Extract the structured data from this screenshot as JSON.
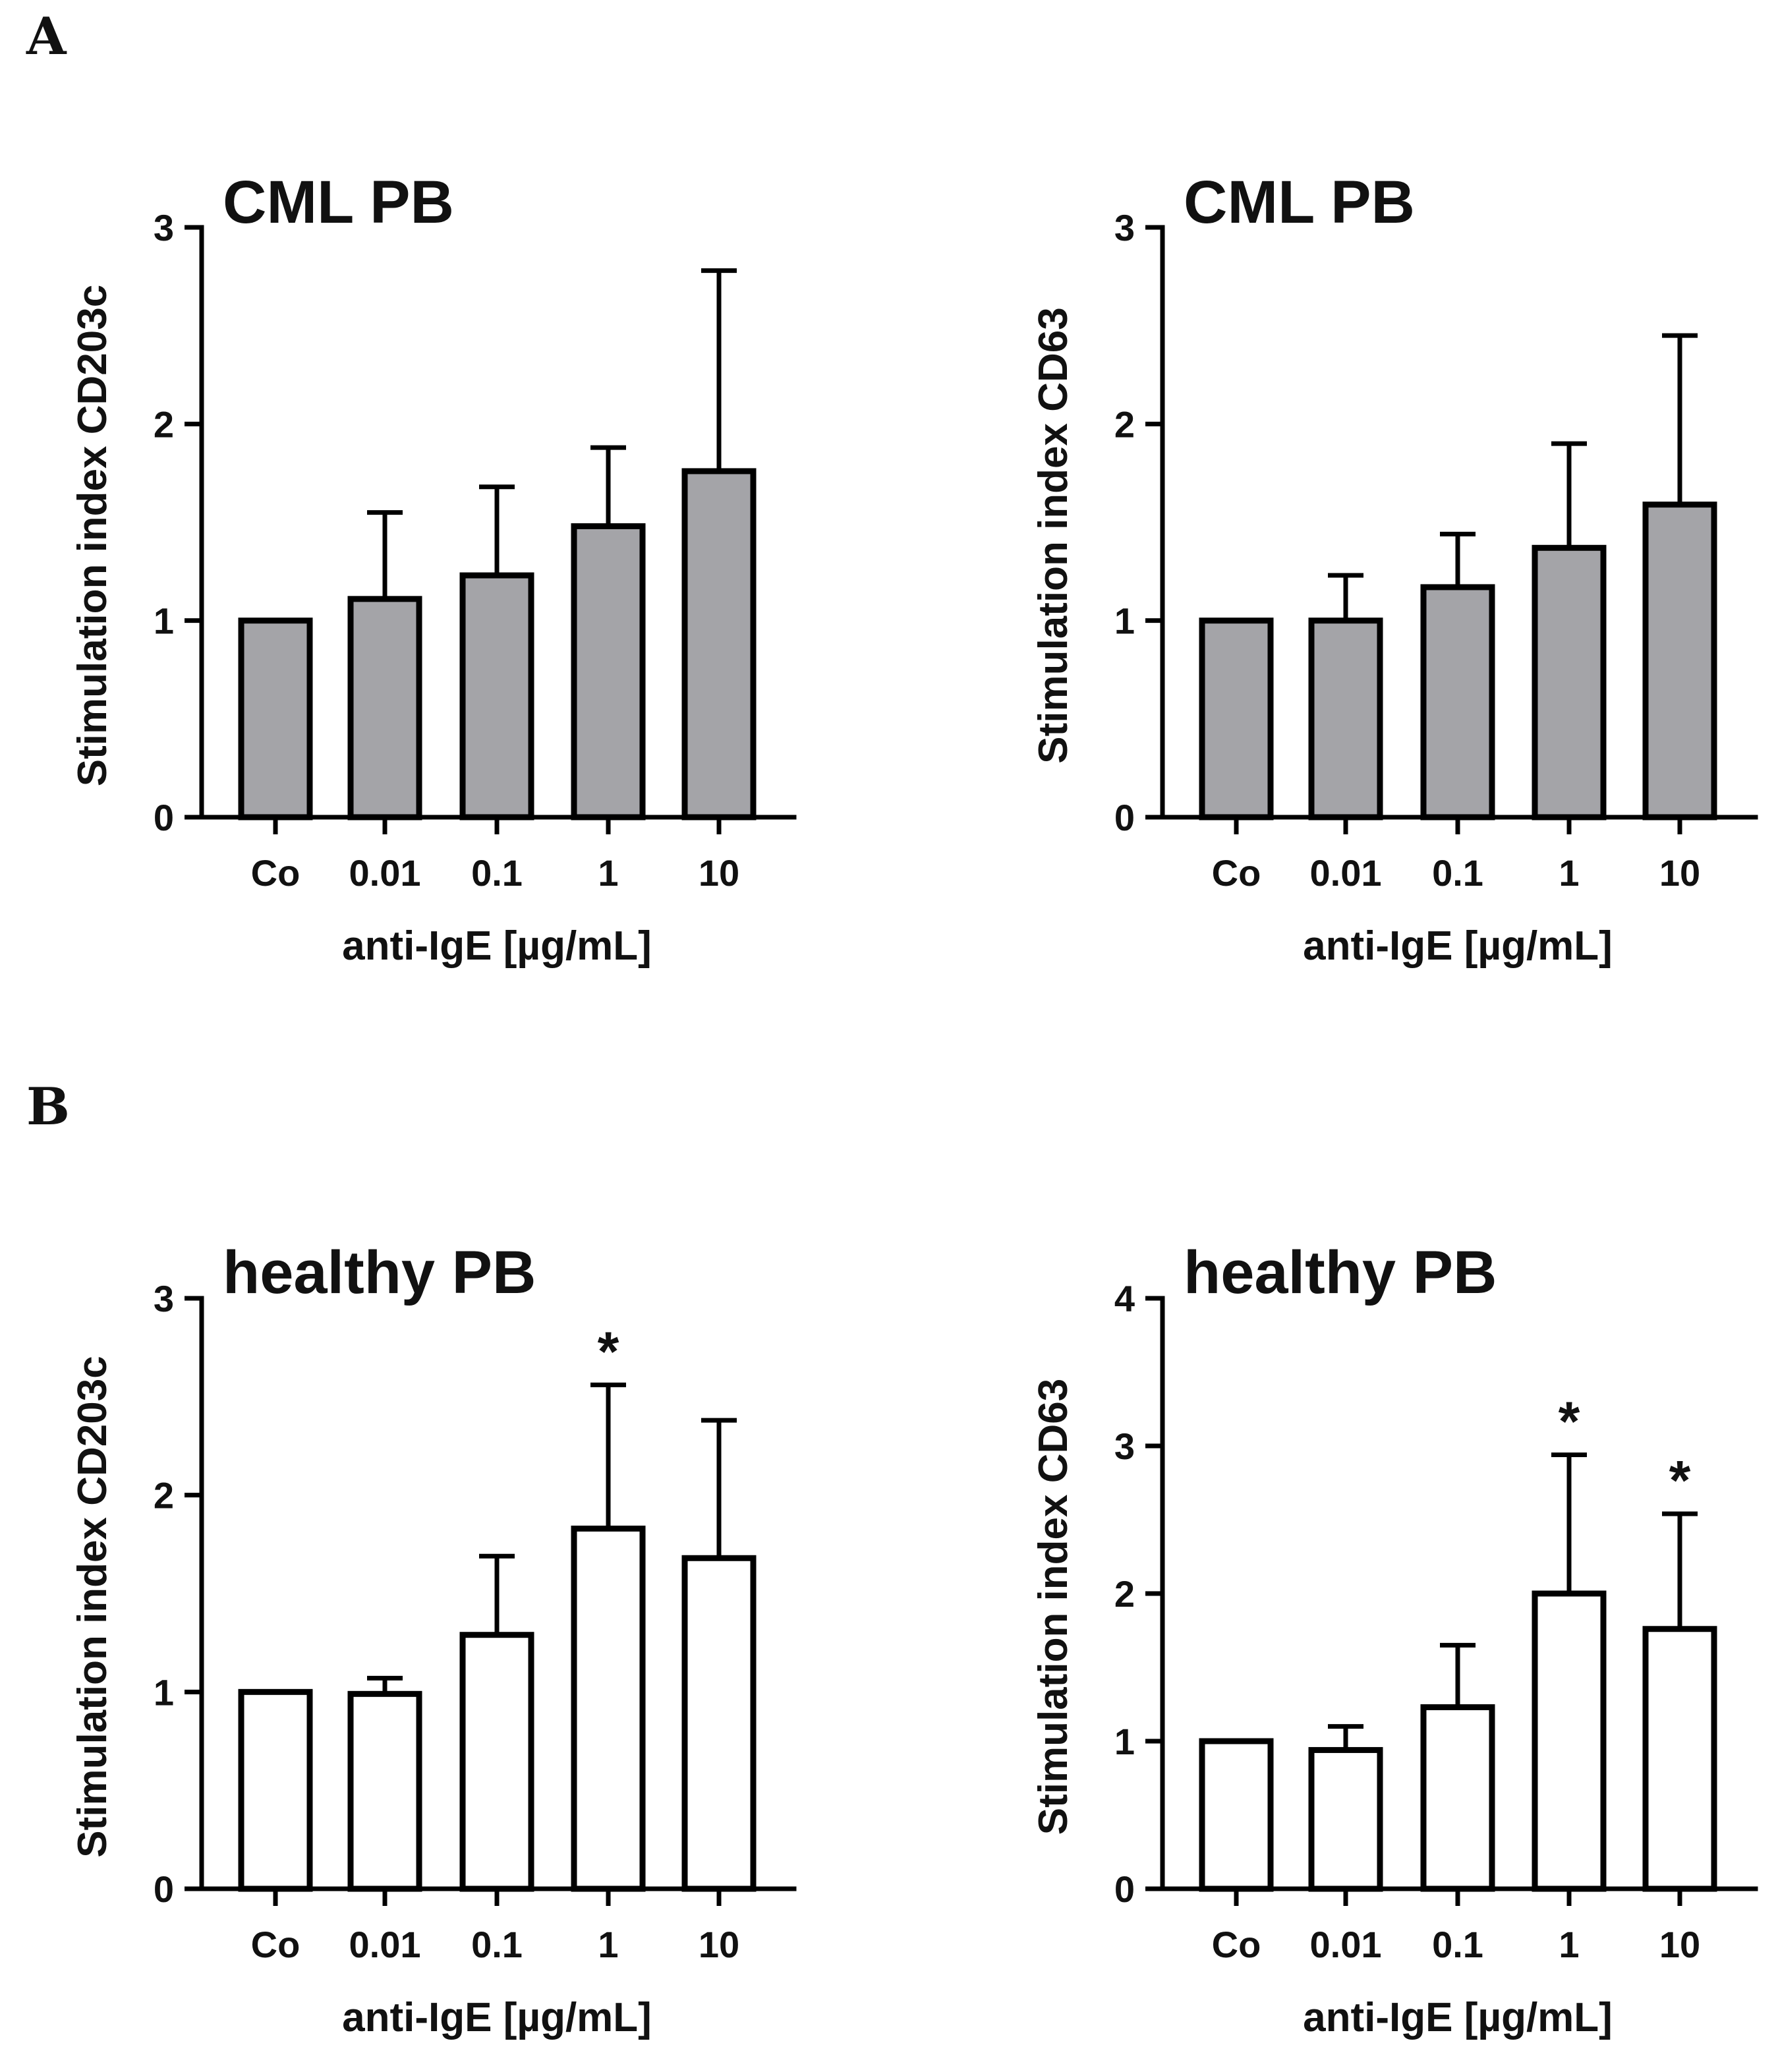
{
  "panels": [
    {
      "letter": "A"
    },
    {
      "letter": "B"
    }
  ],
  "chart_data": [
    {
      "type": "bar",
      "panel": "A",
      "title": "CML PB",
      "xlabel": "anti-IgE [µg/mL]",
      "ylabel": "Stimulation index CD203c",
      "categories": [
        "Co",
        "0.01",
        "0.1",
        "1",
        "10"
      ],
      "values": [
        1.0,
        1.11,
        1.23,
        1.48,
        1.76
      ],
      "error_upper": [
        1.0,
        1.55,
        1.68,
        1.88,
        2.78
      ],
      "significance": [
        "",
        "",
        "",
        "",
        ""
      ],
      "ylim": [
        0,
        3
      ],
      "yticks": [
        "0",
        "1",
        "2",
        "3"
      ],
      "bar_color": "#a4a4a8",
      "edge_color": "#000000"
    },
    {
      "type": "bar",
      "panel": "A",
      "title": "CML PB",
      "xlabel": "anti-IgE [µg/mL]",
      "ylabel": "Stimulation index CD63",
      "categories": [
        "Co",
        "0.01",
        "0.1",
        "1",
        "10"
      ],
      "values": [
        1.0,
        1.0,
        1.17,
        1.37,
        1.59
      ],
      "error_upper": [
        1.0,
        1.23,
        1.44,
        1.9,
        2.45
      ],
      "significance": [
        "",
        "",
        "",
        "",
        ""
      ],
      "ylim": [
        0,
        3
      ],
      "yticks": [
        "0",
        "1",
        "2",
        "3"
      ],
      "bar_color": "#a4a4a8",
      "edge_color": "#000000"
    },
    {
      "type": "bar",
      "panel": "B",
      "title": "healthy PB",
      "xlabel": "anti-IgE [µg/mL]",
      "ylabel": "Stimulation index CD203c",
      "categories": [
        "Co",
        "0.01",
        "0.1",
        "1",
        "10"
      ],
      "values": [
        1.0,
        0.99,
        1.29,
        1.83,
        1.68
      ],
      "error_upper": [
        1.0,
        1.07,
        1.69,
        2.56,
        2.38
      ],
      "significance": [
        "",
        "",
        "",
        "*",
        ""
      ],
      "ylim": [
        0,
        3
      ],
      "yticks": [
        "0",
        "1",
        "2",
        "3"
      ],
      "bar_color": "#ffffff",
      "edge_color": "#000000"
    },
    {
      "type": "bar",
      "panel": "B",
      "title": "healthy PB",
      "xlabel": "anti-IgE [µg/mL]",
      "ylabel": "Stimulation index CD63",
      "categories": [
        "Co",
        "0.01",
        "0.1",
        "1",
        "10"
      ],
      "values": [
        1.0,
        0.94,
        1.23,
        2.0,
        1.76
      ],
      "error_upper": [
        1.0,
        1.1,
        1.65,
        2.94,
        2.54
      ],
      "significance": [
        "",
        "",
        "",
        "*",
        "*"
      ],
      "ylim": [
        0,
        4
      ],
      "yticks": [
        "0",
        "1",
        "2",
        "3",
        "4"
      ],
      "bar_color": "#ffffff",
      "edge_color": "#000000"
    }
  ]
}
